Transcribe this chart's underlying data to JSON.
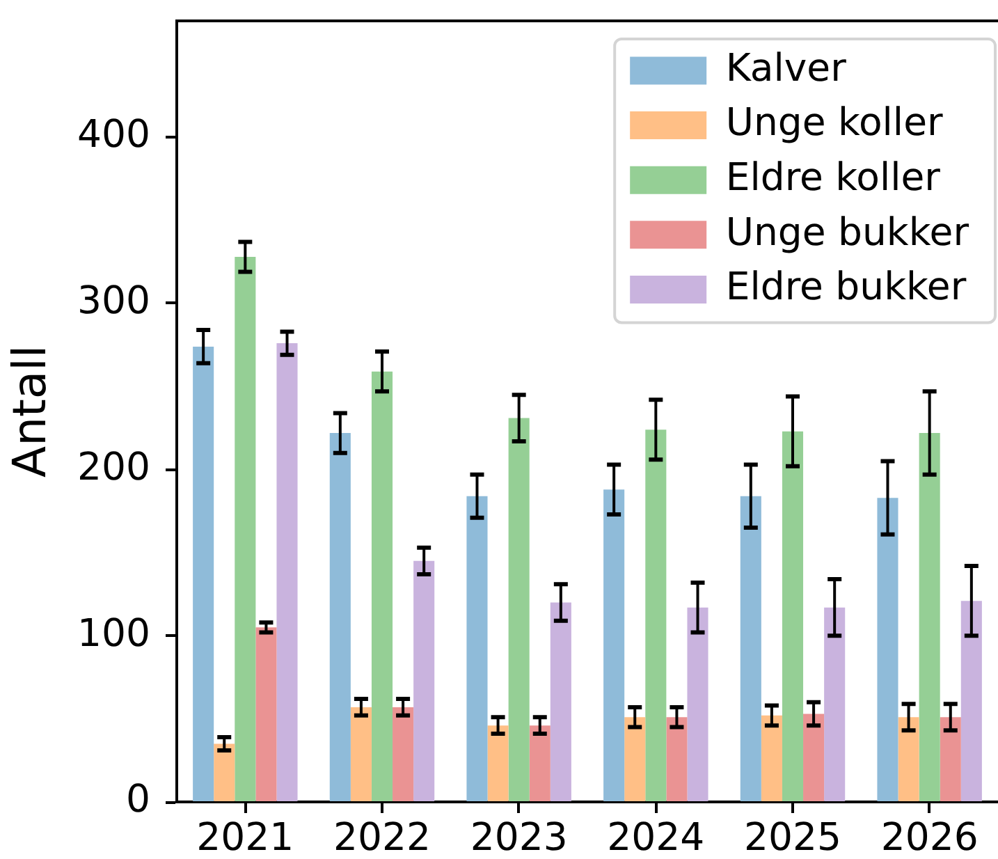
{
  "chart_data": {
    "type": "bar",
    "ylabel": "Antall",
    "categories": [
      "2021",
      "2022",
      "2023",
      "2024",
      "2025",
      "2026"
    ],
    "series": [
      {
        "name": "Kalver",
        "color": "#8fbbd9",
        "values": [
          274,
          222,
          184,
          188,
          184,
          183
        ],
        "errors": [
          10,
          12,
          13,
          15,
          19,
          22
        ]
      },
      {
        "name": "Unge koller",
        "color": "#ffbf86",
        "values": [
          35,
          57,
          46,
          51,
          52,
          51
        ],
        "errors": [
          4,
          5,
          5,
          6,
          6,
          8
        ]
      },
      {
        "name": "Eldre koller",
        "color": "#95cf95",
        "values": [
          328,
          259,
          231,
          224,
          223,
          222
        ],
        "errors": [
          9,
          12,
          14,
          18,
          21,
          25
        ]
      },
      {
        "name": "Unge bukker",
        "color": "#ea9393",
        "values": [
          105,
          57,
          46,
          51,
          53,
          51
        ],
        "errors": [
          3,
          5,
          5,
          6,
          7,
          8
        ]
      },
      {
        "name": "Eldre bukker",
        "color": "#c9b3de",
        "values": [
          276,
          145,
          120,
          117,
          117,
          121
        ],
        "errors": [
          7,
          8,
          11,
          15,
          17,
          21
        ]
      }
    ],
    "ylim": [
      0,
      470
    ],
    "yticks": [
      0,
      100,
      200,
      300,
      400
    ],
    "legend": "top right"
  }
}
